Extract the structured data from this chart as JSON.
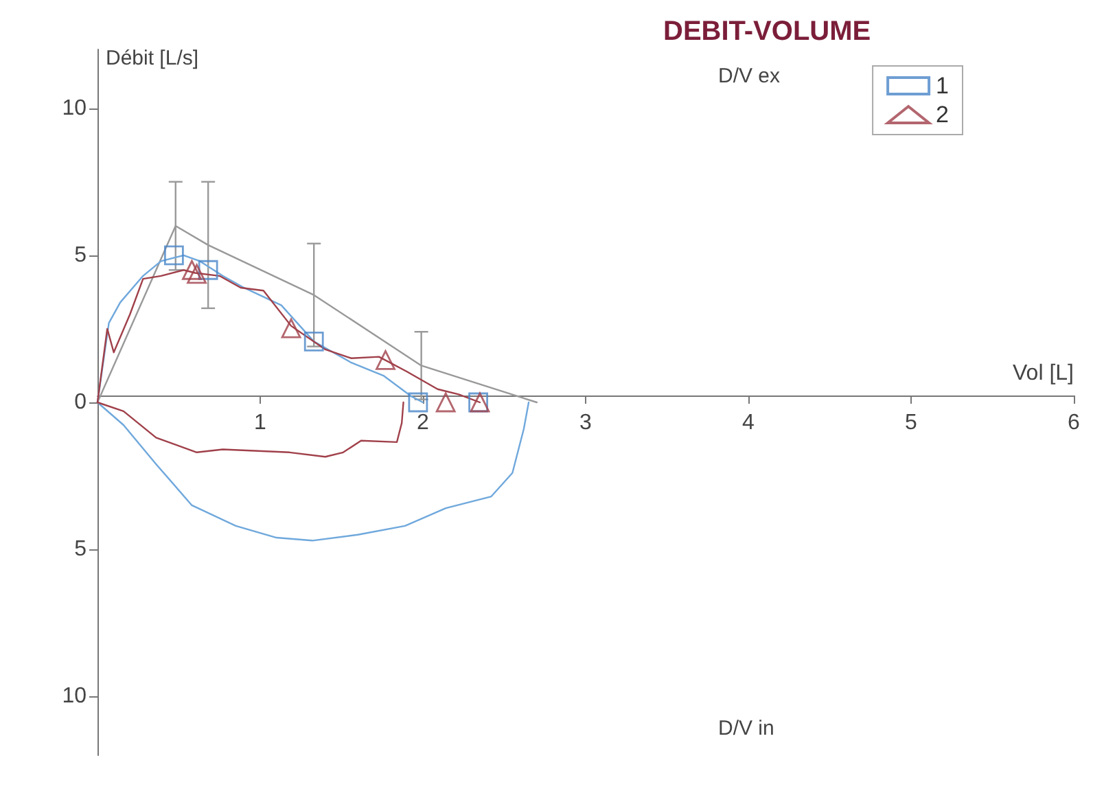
{
  "chart_data": {
    "type": "line",
    "title": "DEBIT-VOLUME",
    "xlabel": "Vol [L]",
    "ylabel": "Débit [L/s]",
    "annotations": [
      "D/V ex",
      "D/V in"
    ],
    "xlim": [
      0,
      6
    ],
    "ylim": [
      -12,
      12
    ],
    "xticks": [
      {
        "value": 0,
        "label": null
      },
      1,
      2,
      3,
      4,
      5,
      6
    ],
    "yticks": [
      {
        "value": -10,
        "label": "10"
      },
      {
        "value": -5,
        "label": "5"
      },
      0,
      5,
      10
    ],
    "grid": false,
    "legend": "top right",
    "line_style": "solid",
    "series": [
      {
        "color": "#999999",
        "marker": "none",
        "x": [
          0,
          0.48,
          0.68,
          1.33,
          1.99,
          2.7
        ],
        "values": [
          0,
          6.0,
          5.35,
          3.65,
          1.25,
          0
        ],
        "errors": [
          null,
          1.5,
          2.15,
          1.75,
          1.15,
          null
        ]
      },
      {
        "color": "#6fa8dc",
        "marker": "none",
        "x": [
          0,
          0.07,
          0.14,
          0.28,
          0.39,
          0.53,
          0.63,
          0.77,
          0.9,
          1.13,
          1.33,
          1.56,
          1.76,
          1.93,
          2.0
        ],
        "values": [
          0,
          2.7,
          3.4,
          4.3,
          4.8,
          5.0,
          4.8,
          4.3,
          3.9,
          3.3,
          2.07,
          1.35,
          0.9,
          0.2,
          0
        ]
      },
      {
        "color": "#6fa8dc",
        "marker": "none",
        "x": [
          0,
          0.16,
          0.36,
          0.58,
          0.85,
          1.1,
          1.32,
          1.6,
          1.89,
          2.14,
          2.42,
          2.55,
          2.62,
          2.65
        ],
        "values": [
          0,
          -0.77,
          -2.1,
          -3.5,
          -4.2,
          -4.6,
          -4.7,
          -4.5,
          -4.2,
          -3.6,
          -3.2,
          -2.4,
          -0.9,
          0
        ]
      },
      {
        "color": "#a0404a",
        "marker": "none",
        "x": [
          0,
          0.06,
          0.1,
          0.2,
          0.28,
          0.39,
          0.53,
          0.6,
          0.75,
          0.88,
          1.02,
          1.19,
          1.4,
          1.56,
          1.73,
          1.9,
          2.09,
          2.22,
          2.35
        ],
        "values": [
          0,
          2.5,
          1.7,
          3.0,
          4.2,
          4.3,
          4.5,
          4.4,
          4.3,
          3.9,
          3.8,
          2.6,
          1.8,
          1.5,
          1.55,
          1.05,
          0.45,
          0.27,
          0
        ]
      },
      {
        "color": "#a0404a",
        "marker": "none",
        "x": [
          0,
          0.16,
          0.36,
          0.61,
          0.77,
          1.18,
          1.4,
          1.51,
          1.62,
          1.84,
          1.87,
          1.88
        ],
        "values": [
          0,
          -0.3,
          -1.2,
          -1.7,
          -1.6,
          -1.7,
          -1.85,
          -1.7,
          -1.3,
          -1.35,
          -0.7,
          0
        ]
      },
      {
        "type": "scatter",
        "name": "1",
        "color": "#4a86c8",
        "marker": "square",
        "x": [
          0.47,
          0.68,
          1.33,
          1.97,
          2.34
        ],
        "values": [
          5.0,
          4.5,
          2.07,
          0,
          0
        ]
      },
      {
        "type": "scatter",
        "name": "2",
        "color": "#a0404a",
        "marker": "triangle",
        "x": [
          0.58,
          0.61,
          1.19,
          1.77,
          2.14,
          2.35
        ],
        "values": [
          4.5,
          4.37,
          2.52,
          1.44,
          0,
          0
        ]
      }
    ]
  }
}
